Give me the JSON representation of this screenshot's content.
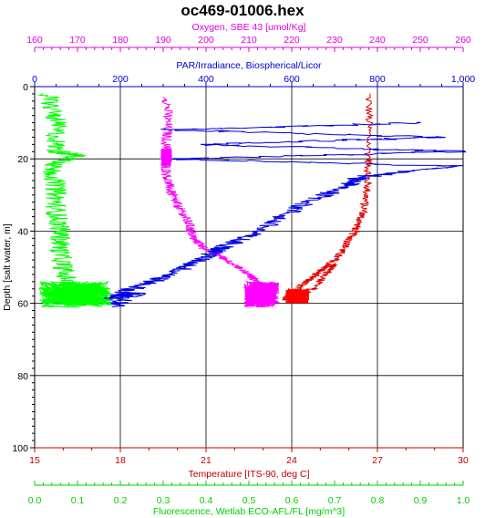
{
  "chart_data": {
    "type": "line",
    "title": "oc469-01006.hex",
    "grid": true,
    "axes": {
      "oxygen": {
        "label": "Oxygen, SBE 43 [umol/Kg]",
        "color": "#e000e0",
        "range": [
          160,
          260
        ],
        "ticks": [
          "160",
          "170",
          "180",
          "190",
          "200",
          "210",
          "220",
          "230",
          "240",
          "250",
          "260"
        ]
      },
      "par": {
        "label": "PAR/Irradiance, Biospherical/Licor",
        "color": "#0000c8",
        "range": [
          0,
          1000
        ],
        "ticks": [
          "0",
          "200",
          "400",
          "600",
          "800",
          "1,000"
        ]
      },
      "depth": {
        "label": "Depth [salt water, m]",
        "color": "#000000",
        "range": [
          0,
          100
        ],
        "ticks": [
          "0",
          "20",
          "40",
          "60",
          "80",
          "100"
        ]
      },
      "temperature": {
        "label": "Temperature [ITS-90, deg C]",
        "color": "#c00000",
        "range": [
          15,
          30
        ],
        "ticks": [
          "15",
          "18",
          "21",
          "24",
          "27",
          "30"
        ]
      },
      "fluorescence": {
        "label": "Fluorescence, Wetlab ECO-AFL/FL [mg/m^3]",
        "color": "#00d000",
        "range": [
          0,
          1
        ],
        "ticks": [
          "0.0",
          "0.1",
          "0.2",
          "0.3",
          "0.4",
          "0.5",
          "0.6",
          "0.7",
          "0.8",
          "0.9",
          "1.0"
        ]
      }
    },
    "series": [
      {
        "axis": "temperature",
        "color": "#e00000",
        "spread": 0.15,
        "points": [
          [
            26.7,
            2
          ],
          [
            26.7,
            20
          ],
          [
            26.65,
            28
          ],
          [
            26.5,
            35
          ],
          [
            26.2,
            40
          ],
          [
            25.9,
            44
          ],
          [
            25.5,
            48
          ],
          [
            25.0,
            51
          ],
          [
            24.5,
            54
          ],
          [
            24.0,
            57
          ],
          [
            23.8,
            59
          ],
          [
            24.6,
            57
          ],
          [
            25.2,
            52
          ],
          [
            25.5,
            49
          ]
        ]
      },
      {
        "axis": "oxygen",
        "color": "#ff00ff",
        "spread": 1.2,
        "points": [
          [
            191,
            3
          ],
          [
            191,
            12
          ],
          [
            190.5,
            20
          ],
          [
            191,
            26
          ],
          [
            192,
            30
          ],
          [
            194,
            34
          ],
          [
            196,
            38
          ],
          [
            197,
            42
          ],
          [
            200,
            45
          ],
          [
            205,
            48
          ],
          [
            210,
            52
          ],
          [
            213,
            55
          ],
          [
            211,
            57
          ],
          [
            210,
            59
          ],
          [
            216,
            60
          ]
        ]
      },
      {
        "axis": "par",
        "color": "#0000e0",
        "spread": 25,
        "points": [
          [
            900,
            10
          ],
          [
            300,
            12
          ],
          [
            950,
            14
          ],
          [
            380,
            16
          ],
          [
            1000,
            18
          ],
          [
            320,
            20
          ],
          [
            980,
            22
          ],
          [
            760,
            25
          ],
          [
            720,
            28
          ],
          [
            620,
            33
          ],
          [
            520,
            40
          ],
          [
            450,
            44
          ],
          [
            400,
            47
          ],
          [
            320,
            52
          ],
          [
            250,
            55
          ],
          [
            160,
            59
          ],
          [
            240,
            57
          ],
          [
            180,
            61
          ]
        ]
      },
      {
        "axis": "fluorescence",
        "color": "#00ff00",
        "spread": 0.025,
        "points": [
          [
            0.03,
            2
          ],
          [
            0.05,
            10
          ],
          [
            0.05,
            18
          ],
          [
            0.1,
            19
          ],
          [
            0.04,
            22
          ],
          [
            0.05,
            28
          ],
          [
            0.05,
            34
          ],
          [
            0.06,
            40
          ],
          [
            0.06,
            46
          ],
          [
            0.07,
            52
          ],
          [
            0.1,
            58
          ],
          [
            0.14,
            60
          ],
          [
            0.06,
            59
          ]
        ]
      }
    ],
    "blobs": [
      {
        "axis": "fluorescence",
        "color": "#00ff00",
        "x": [
          0.01,
          0.18
        ],
        "y": [
          54,
          61
        ]
      },
      {
        "axis": "oxygen",
        "color": "#ff00ff",
        "x": [
          209,
          217
        ],
        "y": [
          54,
          61
        ]
      },
      {
        "axis": "temperature",
        "color": "#ff0000",
        "x": [
          23.8,
          24.6
        ],
        "y": [
          56,
          60
        ]
      },
      {
        "axis": "oxygen",
        "color": "#ff00ff",
        "x": [
          189.5,
          192
        ],
        "y": [
          17,
          22
        ]
      }
    ]
  }
}
